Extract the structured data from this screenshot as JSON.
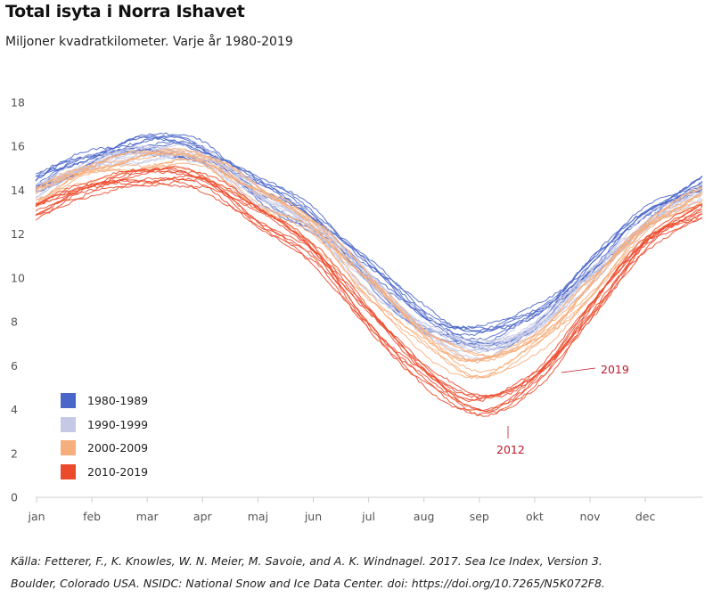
{
  "title": "Total isyta i Norra Ishavet",
  "subtitle": "Miljoner kvadratkilometer. Varje år 1980-2019",
  "source_line1": "Källa: Fetterer, F., K. Knowles, W. N. Meier, M. Savoie, and A. K. Windnagel. 2017. Sea Ice Index, Version 3.",
  "source_line2": "Boulder, Colorado USA. NSIDC: National Snow and Ice Data Center. doi: https://doi.org/10.7265/N5K072F8.",
  "chart_data": {
    "type": "line",
    "title": "Total isyta i Norra Ishavet",
    "subtitle": "Miljoner kvadratkilometer. Varje år 1980-2019",
    "x": [
      "jan",
      "feb",
      "mar",
      "apr",
      "maj",
      "jun",
      "jul",
      "aug",
      "sep",
      "okt",
      "nov",
      "dec"
    ],
    "x_ticks": [
      "jan",
      "feb",
      "mar",
      "apr",
      "maj",
      "jun",
      "jul",
      "aug",
      "sep",
      "okt",
      "nov",
      "dec"
    ],
    "y_ticks": [
      0,
      2,
      4,
      6,
      8,
      10,
      12,
      14,
      16,
      18
    ],
    "ylim": [
      0,
      18
    ],
    "grid": false,
    "legend": {
      "placement": "bottom-left",
      "entries": [
        {
          "label": "1980-1989",
          "color": "#4a66c9"
        },
        {
          "label": "1990-1999",
          "color": "#c5c9e6"
        },
        {
          "label": "2000-2009",
          "color": "#f6ae7c"
        },
        {
          "label": "2010-2019",
          "color": "#ec4a2c"
        }
      ]
    },
    "annotations": [
      {
        "text": "2019",
        "color": "#c0182a"
      },
      {
        "text": "2012",
        "color": "#c0182a"
      }
    ],
    "series": [
      {
        "name": "1980-1989",
        "color": "#4a66c9",
        "values": [
          14.3,
          15.5,
          16.1,
          15.8,
          14.1,
          12.7,
          10.3,
          8.2,
          7.3,
          8.3,
          10.5,
          12.9
        ]
      },
      {
        "name": "1990-1999",
        "color": "#c5c9e6",
        "values": [
          14.0,
          15.2,
          15.7,
          15.5,
          13.8,
          12.4,
          9.9,
          7.8,
          6.8,
          7.9,
          10.1,
          12.5
        ]
      },
      {
        "name": "2000-2009",
        "color": "#f6ae7c",
        "values": [
          13.7,
          14.8,
          15.3,
          15.2,
          13.6,
          12.1,
          9.5,
          7.1,
          5.9,
          7.0,
          9.5,
          12.2
        ]
      },
      {
        "name": "2010-2019",
        "color": "#ec4a2c",
        "values": [
          13.3,
          14.4,
          14.9,
          14.8,
          13.2,
          11.6,
          8.6,
          6.1,
          4.6,
          5.8,
          8.8,
          11.9
        ]
      }
    ]
  }
}
